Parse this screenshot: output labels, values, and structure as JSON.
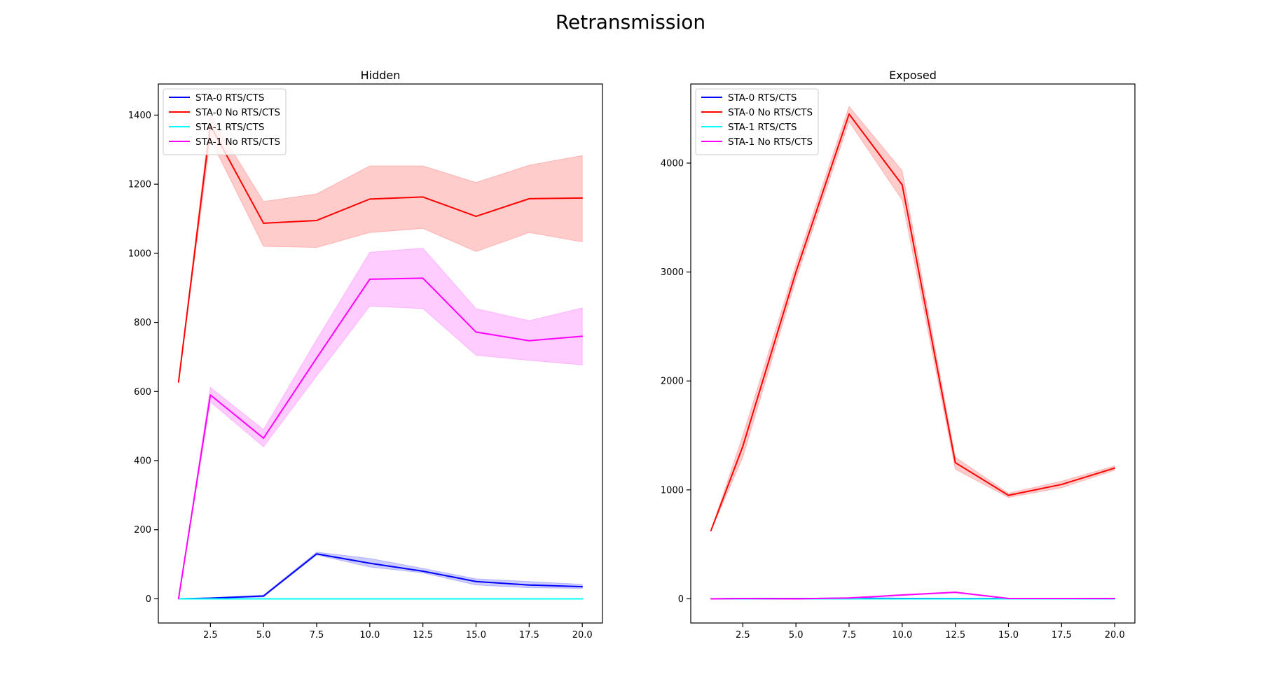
{
  "figure": {
    "title": "Retransmission"
  },
  "chart_data": [
    {
      "type": "line",
      "title": "Hidden",
      "xlabel": "",
      "ylabel": "",
      "xlim": [
        0.05,
        20.95
      ],
      "ylim": [
        -70,
        1490
      ],
      "xticks": [
        2.5,
        5.0,
        7.5,
        10.0,
        12.5,
        15.0,
        17.5,
        20.0
      ],
      "xtick_labels": [
        "2.5",
        "5.0",
        "7.5",
        "10.0",
        "12.5",
        "15.0",
        "17.5",
        "20.0"
      ],
      "yticks": [
        0,
        200,
        400,
        600,
        800,
        1000,
        1200,
        1400
      ],
      "ytick_labels": [
        "0",
        "200",
        "400",
        "600",
        "800",
        "1000",
        "1200",
        "1400"
      ],
      "grid": false,
      "legend": "upper left",
      "x": [
        1,
        2.5,
        5,
        7.5,
        10,
        12.5,
        15,
        17.5,
        20
      ],
      "series": [
        {
          "name": "STA-0 RTS/CTS",
          "color": "#0000ff",
          "values": [
            0,
            2,
            8,
            130,
            103,
            80,
            50,
            40,
            35
          ],
          "lower": [
            0,
            1,
            5,
            127,
            92,
            75,
            40,
            32,
            30
          ],
          "upper": [
            0,
            3,
            11,
            135,
            117,
            88,
            58,
            50,
            42
          ]
        },
        {
          "name": "STA-0 No RTS/CTS",
          "color": "#ff0000",
          "values": [
            627,
            1370,
            1087,
            1095,
            1157,
            1163,
            1107,
            1158,
            1160
          ],
          "lower": [
            627,
            1330,
            1020,
            1017,
            1060,
            1072,
            1005,
            1060,
            1033
          ],
          "upper": [
            627,
            1400,
            1150,
            1172,
            1253,
            1253,
            1205,
            1255,
            1283
          ]
        },
        {
          "name": "STA-1 RTS/CTS",
          "color": "#00ffff",
          "values": [
            0,
            0,
            0,
            0,
            0,
            0,
            0,
            0,
            0
          ],
          "lower": [
            0,
            0,
            0,
            0,
            0,
            0,
            0,
            0,
            0
          ],
          "upper": [
            0,
            0,
            0,
            0,
            0,
            0,
            0,
            0,
            0
          ]
        },
        {
          "name": "STA-1 No RTS/CTS",
          "color": "#ff00ff",
          "values": [
            0,
            590,
            465,
            697,
            925,
            928,
            772,
            747,
            760
          ],
          "lower": [
            0,
            570,
            440,
            645,
            847,
            840,
            705,
            690,
            677
          ],
          "upper": [
            0,
            612,
            490,
            750,
            1003,
            1015,
            840,
            805,
            842
          ]
        }
      ]
    },
    {
      "type": "line",
      "title": "Exposed",
      "xlabel": "",
      "ylabel": "",
      "xlim": [
        0.05,
        20.95
      ],
      "ylim": [
        -222,
        4726
      ],
      "xticks": [
        2.5,
        5.0,
        7.5,
        10.0,
        12.5,
        15.0,
        17.5,
        20.0
      ],
      "xtick_labels": [
        "2.5",
        "5.0",
        "7.5",
        "10.0",
        "12.5",
        "15.0",
        "17.5",
        "20.0"
      ],
      "yticks": [
        0,
        1000,
        2000,
        3000,
        4000
      ],
      "ytick_labels": [
        "0",
        "1000",
        "2000",
        "3000",
        "4000"
      ],
      "grid": false,
      "legend": "upper left",
      "x": [
        1,
        2.5,
        5,
        7.5,
        10,
        12.5,
        15,
        17.5,
        20
      ],
      "series": [
        {
          "name": "STA-0 RTS/CTS",
          "color": "#0000ff",
          "values": [
            0,
            3,
            2,
            5,
            3,
            2,
            3,
            3,
            3
          ],
          "lower": [
            0,
            1,
            0,
            3,
            1,
            0,
            1,
            1,
            1
          ],
          "upper": [
            0,
            5,
            4,
            7,
            5,
            4,
            5,
            5,
            5
          ]
        },
        {
          "name": "STA-0 No RTS/CTS",
          "color": "#ff0000",
          "values": [
            625,
            1400,
            3000,
            4450,
            3800,
            1250,
            950,
            1050,
            1200
          ],
          "lower": [
            625,
            1300,
            2930,
            4380,
            3660,
            1190,
            930,
            1020,
            1180
          ],
          "upper": [
            625,
            1500,
            3070,
            4520,
            3930,
            1300,
            970,
            1080,
            1220
          ]
        },
        {
          "name": "STA-1 RTS/CTS",
          "color": "#00ffff",
          "values": [
            0,
            0,
            0,
            0,
            0,
            0,
            0,
            0,
            0
          ],
          "lower": [
            0,
            0,
            0,
            0,
            0,
            0,
            0,
            0,
            0
          ],
          "upper": [
            0,
            0,
            0,
            0,
            0,
            0,
            0,
            0,
            0
          ]
        },
        {
          "name": "STA-1 No RTS/CTS",
          "color": "#ff00ff",
          "values": [
            0,
            2,
            0,
            8,
            35,
            60,
            3,
            3,
            2
          ],
          "lower": [
            0,
            0,
            0,
            5,
            30,
            55,
            1,
            1,
            0
          ],
          "upper": [
            0,
            4,
            2,
            11,
            40,
            65,
            5,
            5,
            4
          ]
        }
      ]
    }
  ]
}
